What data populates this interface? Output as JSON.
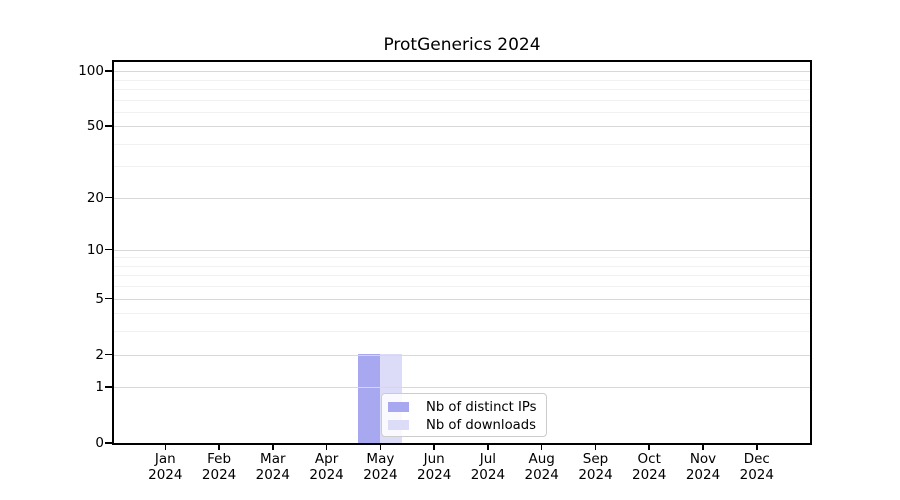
{
  "chart_data": {
    "type": "bar",
    "title": "ProtGenerics 2024",
    "xlabel": "",
    "ylabel": "",
    "yscale": "log1p",
    "ylim": [
      0,
      112
    ],
    "y_major_ticks": [
      0,
      1,
      2,
      5,
      10,
      20,
      50,
      100
    ],
    "y_minor_ticks": [
      3,
      4,
      6,
      7,
      8,
      9,
      30,
      40,
      60,
      70,
      80,
      90
    ],
    "grid": "horizontal, major+minor, drawn over bars",
    "legend_position": "inside lower center",
    "x_tick_labels": [
      [
        "Jan",
        "2024"
      ],
      [
        "Feb",
        "2024"
      ],
      [
        "Mar",
        "2024"
      ],
      [
        "Apr",
        "2024"
      ],
      [
        "May",
        "2024"
      ],
      [
        "Jun",
        "2024"
      ],
      [
        "Jul",
        "2024"
      ],
      [
        "Aug",
        "2024"
      ],
      [
        "Sep",
        "2024"
      ],
      [
        "Oct",
        "2024"
      ],
      [
        "Nov",
        "2024"
      ],
      [
        "Dec",
        "2024"
      ]
    ],
    "series": [
      {
        "name": "Nb of distinct IPs",
        "color": "#a8a8f0",
        "values": [
          0,
          0,
          0,
          0,
          2,
          0,
          0,
          0,
          0,
          0,
          0,
          0
        ]
      },
      {
        "name": "Nb of downloads",
        "color": "#dcdcf8",
        "values": [
          0,
          0,
          0,
          0,
          2,
          0,
          0,
          0,
          0,
          0,
          0,
          0
        ]
      }
    ]
  },
  "colors": {
    "background": "#ffffff",
    "spine": "#000000",
    "grid_major": "#d8d8d8",
    "grid_minor": "#f1f1f1",
    "legend_border": "#cccccc",
    "legend_bg": "rgba(255,255,255,0.85)",
    "text": "#000000"
  }
}
